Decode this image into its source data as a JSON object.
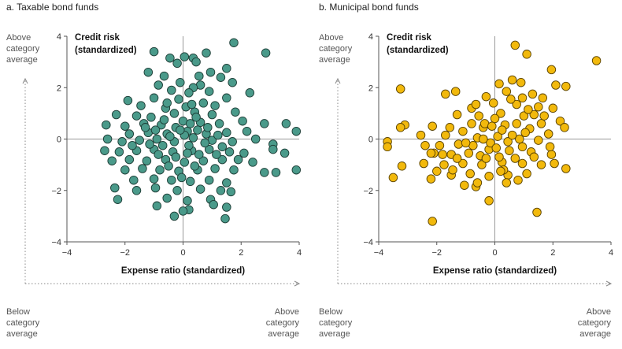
{
  "chart_data": [
    {
      "type": "scatter",
      "title": "a. Taxable bond funds",
      "xlabel": "Expense ratio (standardized)",
      "ylabel": "Credit risk (standardized)",
      "xlim": [
        -4,
        4
      ],
      "ylim": [
        -4,
        4
      ],
      "xticks": [
        "−4",
        "−2",
        "0",
        "2",
        "4"
      ],
      "yticks": [
        "4",
        "2",
        "0",
        "−2",
        "−4"
      ],
      "above_label": [
        "Above",
        "category",
        "average"
      ],
      "below_label": [
        "Below",
        "category",
        "average"
      ],
      "right_label": [
        "Above",
        "category",
        "average"
      ],
      "marker_color": "#4a9a8a",
      "marker_edge": "#1d3d36",
      "grid": false,
      "points": [
        [
          1.75,
          3.75
        ],
        [
          -1.0,
          3.4
        ],
        [
          2.85,
          3.35
        ],
        [
          -0.45,
          3.15
        ],
        [
          0.05,
          3.2
        ],
        [
          0.35,
          3.15
        ],
        [
          0.8,
          3.35
        ],
        [
          -0.2,
          2.95
        ],
        [
          0.45,
          3.0
        ],
        [
          0.95,
          2.6
        ],
        [
          1.5,
          2.75
        ],
        [
          -1.2,
          2.6
        ],
        [
          -0.65,
          2.45
        ],
        [
          0.55,
          2.45
        ],
        [
          1.3,
          2.4
        ],
        [
          -0.1,
          2.2
        ],
        [
          0.6,
          2.1
        ],
        [
          1.7,
          2.2
        ],
        [
          -0.85,
          2.1
        ],
        [
          0.35,
          2.0
        ],
        [
          -1.9,
          1.5
        ],
        [
          -1.0,
          1.6
        ],
        [
          -0.4,
          1.9
        ],
        [
          0.2,
          1.8
        ],
        [
          0.9,
          1.85
        ],
        [
          2.3,
          1.8
        ],
        [
          -1.45,
          1.3
        ],
        [
          -0.6,
          1.2
        ],
        [
          0.1,
          1.25
        ],
        [
          0.7,
          1.4
        ],
        [
          1.1,
          1.3
        ],
        [
          1.5,
          1.6
        ],
        [
          -2.3,
          0.95
        ],
        [
          -1.6,
          0.9
        ],
        [
          -1.1,
          0.85
        ],
        [
          -0.3,
          1.0
        ],
        [
          0.4,
          1.05
        ],
        [
          1.0,
          0.95
        ],
        [
          1.8,
          1.05
        ],
        [
          -2.0,
          0.5
        ],
        [
          -1.35,
          0.6
        ],
        [
          -0.75,
          0.55
        ],
        [
          0.0,
          0.7
        ],
        [
          0.6,
          0.65
        ],
        [
          1.25,
          0.6
        ],
        [
          2.05,
          0.7
        ],
        [
          2.8,
          0.6
        ],
        [
          3.55,
          0.6
        ],
        [
          -2.65,
          0.55
        ],
        [
          -1.85,
          0.2
        ],
        [
          -1.2,
          0.25
        ],
        [
          -0.55,
          0.2
        ],
        [
          0.15,
          0.3
        ],
        [
          0.8,
          0.2
        ],
        [
          1.5,
          0.25
        ],
        [
          2.2,
          0.3
        ],
        [
          3.9,
          0.3
        ],
        [
          -2.6,
          0.0
        ],
        [
          -2.1,
          -0.1
        ],
        [
          -1.5,
          -0.05
        ],
        [
          -0.9,
          0.0
        ],
        [
          -0.3,
          -0.1
        ],
        [
          0.35,
          0.05
        ],
        [
          1.0,
          -0.05
        ],
        [
          1.7,
          -0.1
        ],
        [
          2.5,
          0.0
        ],
        [
          -2.7,
          -0.45
        ],
        [
          -2.2,
          -0.5
        ],
        [
          -1.6,
          -0.45
        ],
        [
          -1.0,
          -0.4
        ],
        [
          -0.35,
          -0.5
        ],
        [
          0.3,
          -0.45
        ],
        [
          0.9,
          -0.4
        ],
        [
          1.6,
          -0.5
        ],
        [
          2.1,
          -0.55
        ],
        [
          3.1,
          -0.2
        ],
        [
          3.1,
          -0.4
        ],
        [
          -2.45,
          -0.85
        ],
        [
          -1.85,
          -0.8
        ],
        [
          -1.25,
          -0.85
        ],
        [
          -0.6,
          -0.8
        ],
        [
          0.05,
          -0.9
        ],
        [
          0.7,
          -0.85
        ],
        [
          1.35,
          -0.8
        ],
        [
          2.4,
          -0.9
        ],
        [
          3.5,
          -0.55
        ],
        [
          -2.0,
          -1.2
        ],
        [
          -1.4,
          -1.15
        ],
        [
          -0.8,
          -1.2
        ],
        [
          -0.15,
          -1.25
        ],
        [
          0.5,
          -1.2
        ],
        [
          1.1,
          -1.15
        ],
        [
          1.75,
          -1.2
        ],
        [
          2.8,
          -1.3
        ],
        [
          3.2,
          -1.3
        ],
        [
          3.9,
          -1.2
        ],
        [
          -1.7,
          -1.6
        ],
        [
          -1.0,
          -1.55
        ],
        [
          -0.4,
          -1.6
        ],
        [
          0.25,
          -1.65
        ],
        [
          0.9,
          -1.6
        ],
        [
          1.5,
          -1.7
        ],
        [
          -2.35,
          -1.9
        ],
        [
          -0.95,
          -1.9
        ],
        [
          -0.2,
          -2.0
        ],
        [
          0.6,
          -1.95
        ],
        [
          1.3,
          -2.0
        ],
        [
          -2.25,
          -2.35
        ],
        [
          -1.6,
          -2.0
        ],
        [
          -0.55,
          -2.3
        ],
        [
          0.15,
          -2.4
        ],
        [
          0.95,
          -2.35
        ],
        [
          1.65,
          -2.05
        ],
        [
          -0.9,
          -2.6
        ],
        [
          0.2,
          -2.75
        ],
        [
          1.05,
          -2.55
        ],
        [
          1.5,
          -2.65
        ],
        [
          -0.3,
          -3.0
        ],
        [
          0.0,
          -2.8
        ],
        [
          1.45,
          -3.1
        ],
        [
          -1.3,
          0.45
        ],
        [
          -0.95,
          0.35
        ],
        [
          -0.65,
          0.75
        ],
        [
          -0.25,
          0.45
        ],
        [
          0.05,
          0.15
        ],
        [
          0.25,
          0.6
        ],
        [
          0.5,
          0.35
        ],
        [
          0.75,
          -0.15
        ],
        [
          1.2,
          0.15
        ],
        [
          1.35,
          -0.3
        ],
        [
          -1.15,
          -0.2
        ],
        [
          -0.7,
          -0.25
        ],
        [
          -0.45,
          0.1
        ],
        [
          -0.1,
          0.35
        ],
        [
          0.2,
          -0.25
        ],
        [
          0.55,
          -0.6
        ],
        [
          0.85,
          0.45
        ],
        [
          1.15,
          -0.6
        ],
        [
          -0.85,
          -0.6
        ],
        [
          -0.25,
          -0.7
        ],
        [
          0.15,
          -0.55
        ],
        [
          0.45,
          0.85
        ],
        [
          -0.55,
          1.4
        ],
        [
          0.3,
          1.35
        ],
        [
          -0.15,
          1.55
        ],
        [
          1.9,
          -0.8
        ],
        [
          -1.75,
          -0.25
        ],
        [
          -0.05,
          -1.5
        ],
        [
          0.4,
          -1.05
        ],
        [
          -0.5,
          -1.05
        ]
      ]
    },
    {
      "type": "scatter",
      "title": "b. Municipal bond funds",
      "xlabel": "Expense ratio (standardized)",
      "ylabel": "Credit risk (standardized)",
      "xlim": [
        -4,
        4
      ],
      "ylim": [
        -4,
        4
      ],
      "xticks": [
        "−4",
        "−2",
        "0",
        "2",
        "4"
      ],
      "yticks": [
        "4",
        "2",
        "0",
        "−2",
        "−4"
      ],
      "above_label": [
        "Above",
        "category",
        "average"
      ],
      "below_label": [
        "Below",
        "category",
        "average"
      ],
      "right_label": [
        "Above",
        "category",
        "average"
      ],
      "marker_color": "#f2b90c",
      "marker_edge": "#5a4300",
      "grid": false,
      "points": [
        [
          0.7,
          3.65
        ],
        [
          1.1,
          3.3
        ],
        [
          3.5,
          3.05
        ],
        [
          1.95,
          2.7
        ],
        [
          -3.25,
          1.95
        ],
        [
          0.15,
          2.15
        ],
        [
          0.6,
          2.3
        ],
        [
          0.9,
          2.2
        ],
        [
          2.1,
          2.1
        ],
        [
          2.45,
          2.05
        ],
        [
          -1.7,
          1.75
        ],
        [
          -1.35,
          1.85
        ],
        [
          -0.3,
          1.65
        ],
        [
          0.4,
          1.85
        ],
        [
          1.3,
          1.75
        ],
        [
          1.65,
          1.6
        ],
        [
          -0.8,
          1.2
        ],
        [
          -0.05,
          1.4
        ],
        [
          0.75,
          1.35
        ],
        [
          1.5,
          1.25
        ],
        [
          2.25,
          0.7
        ],
        [
          2.0,
          1.2
        ],
        [
          -3.1,
          0.55
        ],
        [
          -3.25,
          0.45
        ],
        [
          -2.15,
          0.5
        ],
        [
          -1.3,
          0.95
        ],
        [
          -0.55,
          0.9
        ],
        [
          0.2,
          1.0
        ],
        [
          1.0,
          0.9
        ],
        [
          1.6,
          0.6
        ],
        [
          -3.7,
          -0.1
        ],
        [
          -3.7,
          -0.3
        ],
        [
          -2.4,
          -0.25
        ],
        [
          -1.7,
          0.15
        ],
        [
          -1.1,
          0.3
        ],
        [
          -0.4,
          0.45
        ],
        [
          0.35,
          0.55
        ],
        [
          1.2,
          0.4
        ],
        [
          1.85,
          0.2
        ],
        [
          2.4,
          0.45
        ],
        [
          -2.55,
          0.15
        ],
        [
          -1.9,
          -0.25
        ],
        [
          -1.25,
          -0.2
        ],
        [
          -0.6,
          0.05
        ],
        [
          0.1,
          0.1
        ],
        [
          0.85,
          0.0
        ],
        [
          1.5,
          -0.05
        ],
        [
          -2.1,
          -0.55
        ],
        [
          -2.2,
          -0.55
        ],
        [
          -1.5,
          -0.6
        ],
        [
          -0.9,
          -0.55
        ],
        [
          -0.2,
          -0.4
        ],
        [
          0.5,
          -0.45
        ],
        [
          1.25,
          -0.5
        ],
        [
          1.95,
          -0.6
        ],
        [
          -2.45,
          -0.95
        ],
        [
          -3.2,
          -1.05
        ],
        [
          -1.75,
          -1.0
        ],
        [
          -1.1,
          -0.95
        ],
        [
          -0.45,
          -1.0
        ],
        [
          0.25,
          -0.9
        ],
        [
          0.95,
          -0.95
        ],
        [
          1.6,
          -1.0
        ],
        [
          -3.5,
          -1.5
        ],
        [
          -2.2,
          -1.55
        ],
        [
          -1.5,
          -1.4
        ],
        [
          -0.85,
          -1.35
        ],
        [
          -0.2,
          -1.45
        ],
        [
          0.45,
          -1.4
        ],
        [
          1.1,
          -1.35
        ],
        [
          2.45,
          -1.15
        ],
        [
          -1.05,
          -1.8
        ],
        [
          -0.65,
          -1.85
        ],
        [
          0.4,
          -1.7
        ],
        [
          0.8,
          -1.6
        ],
        [
          -0.2,
          -2.4
        ],
        [
          -2.15,
          -3.2
        ],
        [
          1.45,
          -2.85
        ],
        [
          -0.6,
          -1.7
        ],
        [
          -1.45,
          -1.2
        ],
        [
          -0.35,
          0.6
        ],
        [
          0.0,
          0.8
        ],
        [
          0.55,
          1.55
        ],
        [
          0.95,
          1.6
        ],
        [
          1.35,
          0.95
        ],
        [
          -0.15,
          -0.15
        ],
        [
          -0.75,
          -0.25
        ],
        [
          0.45,
          -0.1
        ],
        [
          0.75,
          0.6
        ],
        [
          1.05,
          0.25
        ],
        [
          -1.0,
          -0.15
        ],
        [
          -1.55,
          0.45
        ],
        [
          -0.5,
          -0.65
        ],
        [
          0.15,
          -0.7
        ],
        [
          0.7,
          -0.75
        ],
        [
          1.35,
          -0.7
        ],
        [
          -1.3,
          -0.75
        ],
        [
          0.25,
          0.35
        ],
        [
          -0.1,
          0.5
        ],
        [
          0.6,
          0.15
        ],
        [
          1.7,
          0.9
        ],
        [
          0.3,
          -1.2
        ],
        [
          -0.8,
          0.6
        ],
        [
          -2.0,
          -1.25
        ],
        [
          1.9,
          -0.3
        ],
        [
          0.05,
          -0.35
        ],
        [
          -0.3,
          -0.75
        ],
        [
          1.15,
          1.15
        ],
        [
          2.05,
          -0.95
        ],
        [
          -1.8,
          -0.6
        ],
        [
          -0.65,
          1.35
        ],
        [
          0.2,
          -1.25
        ],
        [
          -0.4,
          0.0
        ],
        [
          0.95,
          -0.3
        ]
      ]
    }
  ]
}
